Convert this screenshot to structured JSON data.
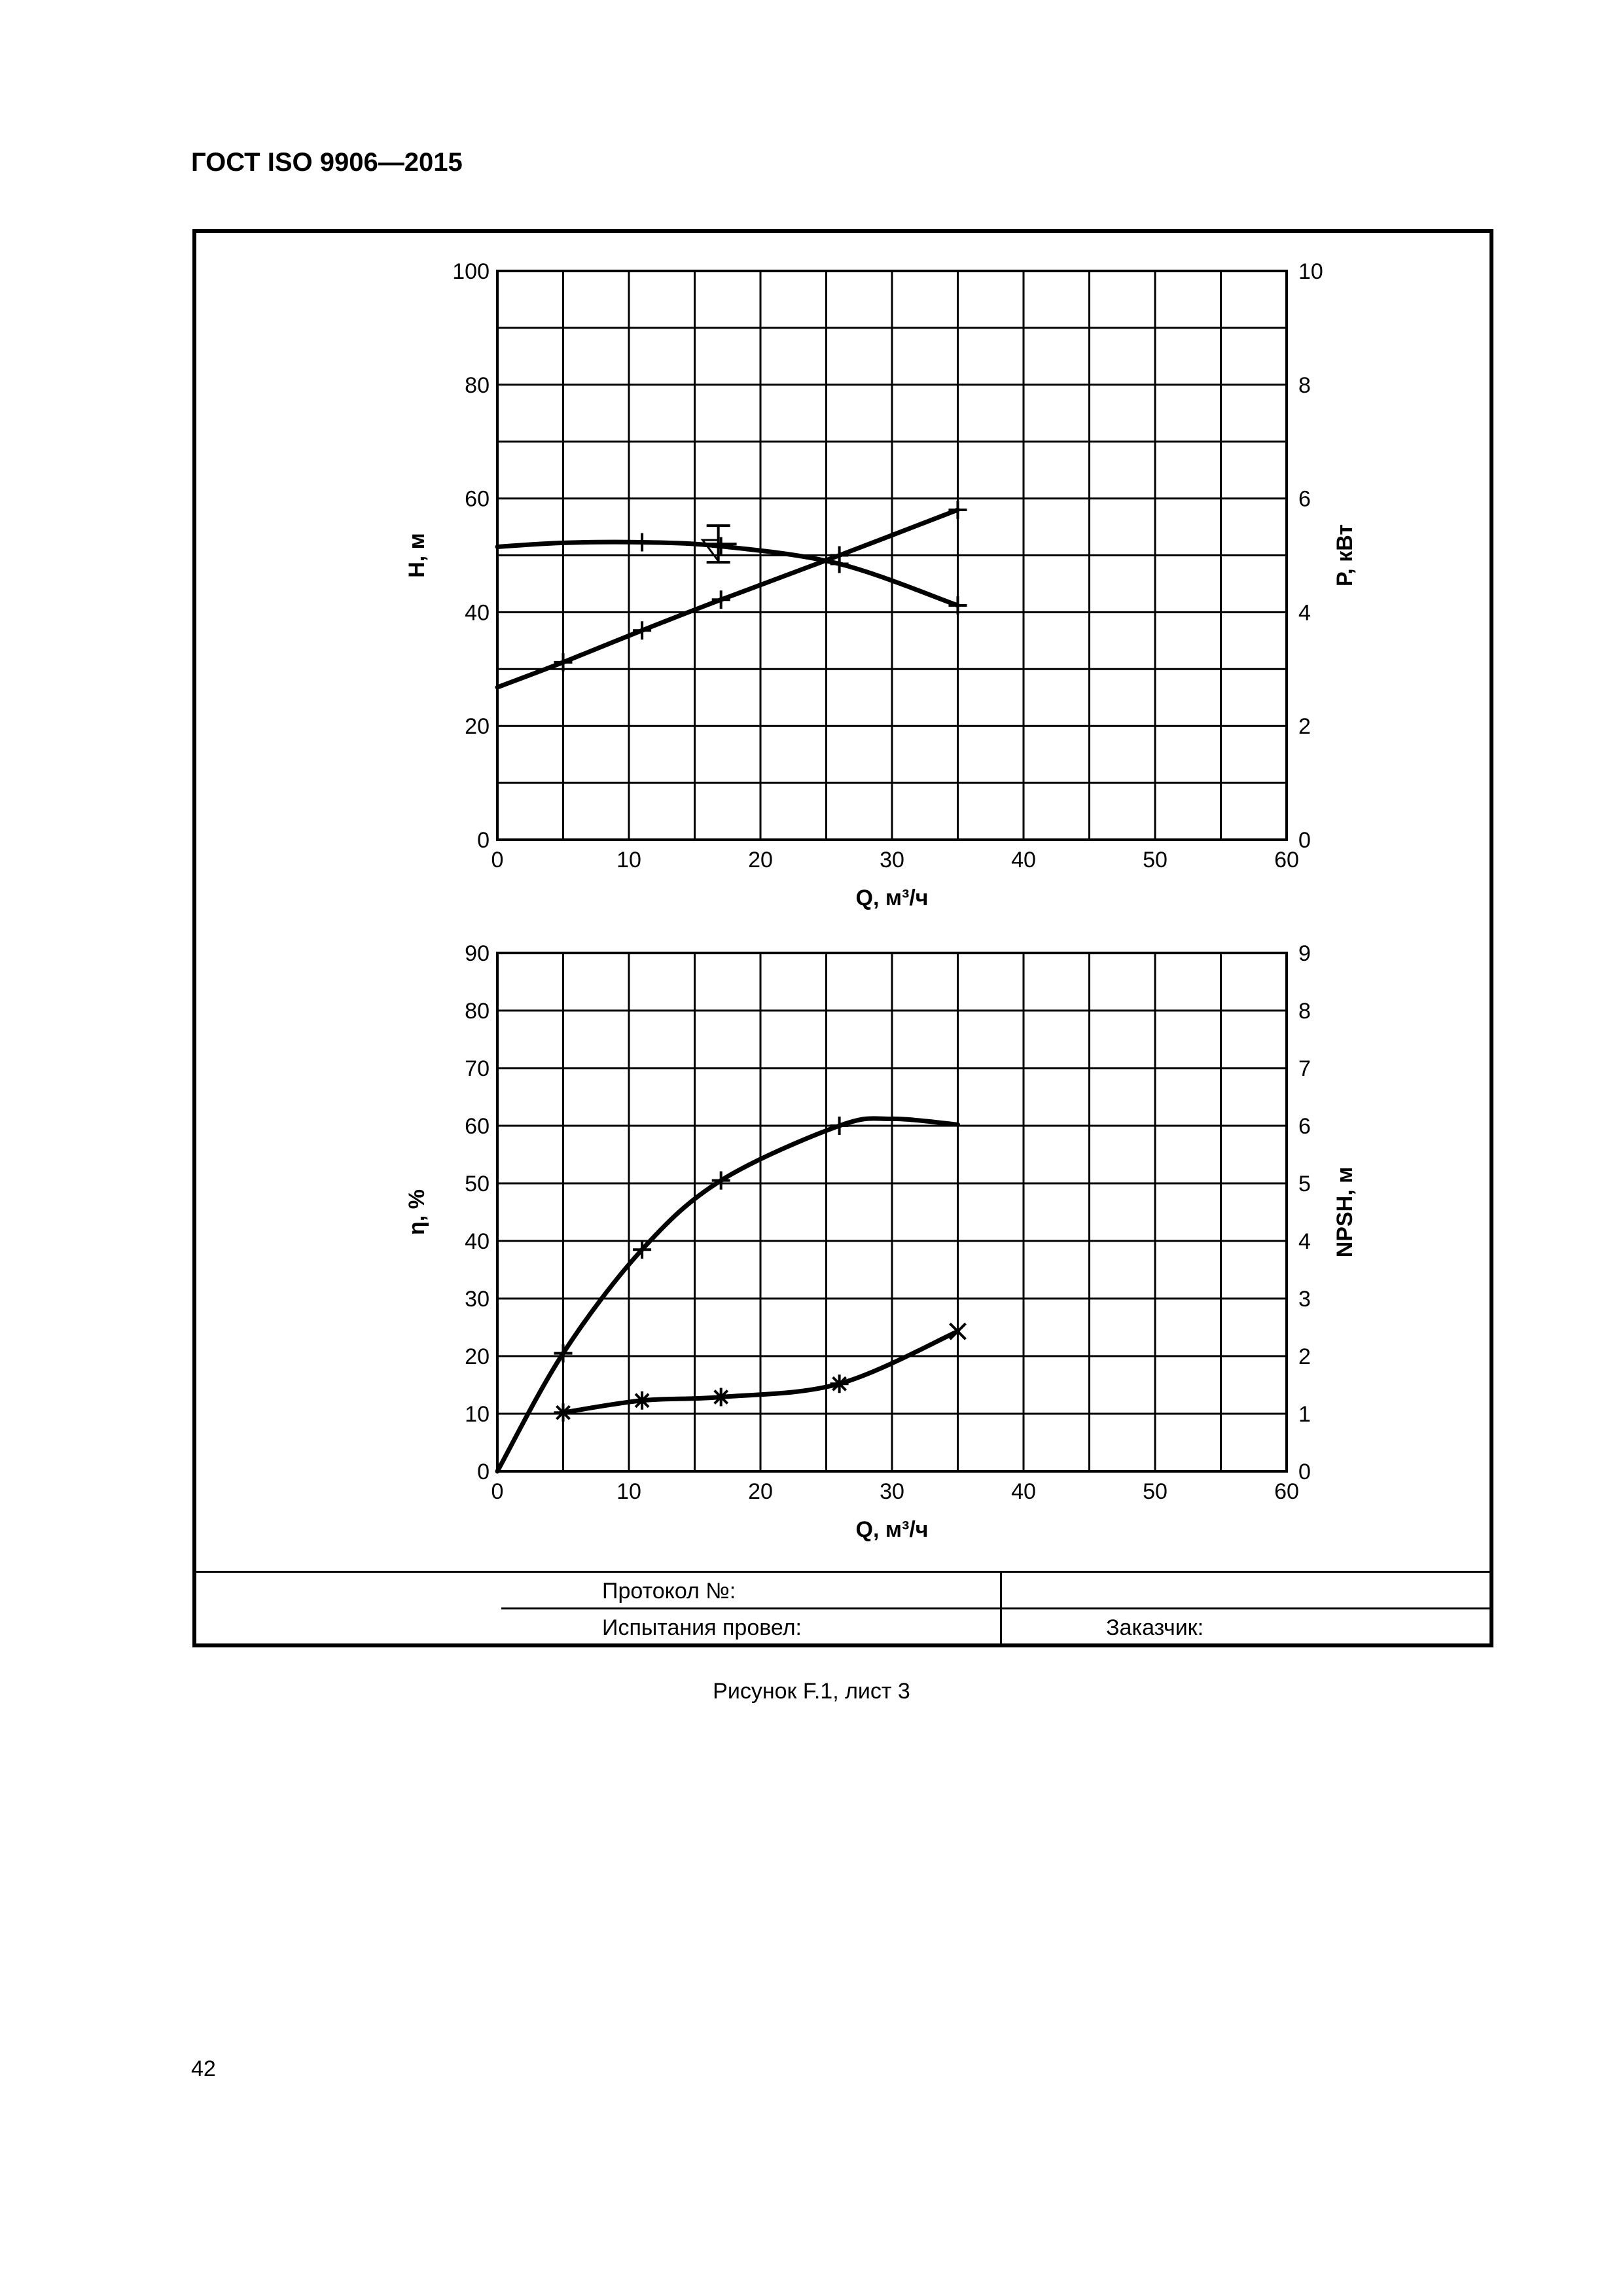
{
  "header": {
    "title": "ГОСТ ISO 9906—2015"
  },
  "footer": {
    "protocol_label": "Протокол №:",
    "tester_label": "Испытания провел:",
    "customer_label": "Заказчик:"
  },
  "caption": "Рисунок F.1, лист 3",
  "page_number": "42",
  "chart_data": [
    {
      "type": "line",
      "xlabel": "Q, м³/ч",
      "xlim": [
        0,
        60
      ],
      "xticks": [
        0,
        10,
        20,
        30,
        40,
        50,
        60
      ],
      "ylabel_left": "H, м",
      "ylim_left": [
        0,
        100
      ],
      "yticks_left": [
        0,
        20,
        40,
        60,
        80,
        100
      ],
      "ylabel_right": "P, кВт",
      "ylim_right": [
        0,
        10
      ],
      "yticks_right": [
        0,
        2,
        4,
        6,
        8,
        10
      ],
      "grid": true,
      "series": [
        {
          "axis": "left",
          "marker": "+",
          "points": [
            [
              0,
              51.5
            ],
            [
              5,
              52.2
            ],
            [
              11,
              52.3
            ],
            [
              17,
              51.6
            ],
            [
              26,
              48.5
            ],
            [
              35,
              41.2
            ]
          ],
          "marked": [
            [
              11,
              52.3
            ],
            [
              17,
              51.6
            ],
            [
              26,
              48.5
            ],
            [
              35,
              41.2
            ]
          ]
        },
        {
          "axis": "right",
          "marker": "+",
          "points": [
            [
              0,
              2.68
            ],
            [
              5,
              3.12
            ],
            [
              11,
              3.68
            ],
            [
              17,
              4.22
            ],
            [
              26,
              5.0
            ],
            [
              35,
              5.8
            ]
          ],
          "marked": [
            [
              5,
              3.12
            ],
            [
              11,
              3.68
            ],
            [
              17,
              4.22
            ],
            [
              26,
              5.0
            ],
            [
              35,
              5.8
            ]
          ]
        }
      ],
      "annotations": [
        {
          "kind": "guarantee-point",
          "x": 16.5,
          "y": 52
        }
      ]
    },
    {
      "type": "line",
      "xlabel": "Q, м³/ч",
      "xlim": [
        0,
        60
      ],
      "xticks": [
        0,
        10,
        20,
        30,
        40,
        50,
        60
      ],
      "ylabel_left": "η, %",
      "ylim_left": [
        0,
        90
      ],
      "yticks_left": [
        0,
        10,
        20,
        30,
        40,
        50,
        60,
        70,
        80,
        90
      ],
      "ylabel_right": "NPSH, м",
      "ylim_right": [
        0,
        9
      ],
      "yticks_right": [
        0,
        1,
        2,
        3,
        4,
        5,
        6,
        7,
        8,
        9
      ],
      "grid": true,
      "series": [
        {
          "axis": "left",
          "marker": "+",
          "points": [
            [
              0,
              0
            ],
            [
              5,
              20.5
            ],
            [
              11,
              38.5
            ],
            [
              17,
              50.5
            ],
            [
              26,
              60.0
            ],
            [
              30,
              61.2
            ],
            [
              35,
              60.2
            ]
          ],
          "marked": [
            [
              5,
              20.5
            ],
            [
              11,
              38.5
            ],
            [
              17,
              50.5
            ],
            [
              26,
              60.0
            ]
          ]
        },
        {
          "axis": "right",
          "marker": "*",
          "points": [
            [
              5,
              1.02
            ],
            [
              11,
              1.23
            ],
            [
              17,
              1.29
            ],
            [
              26,
              1.52
            ],
            [
              35,
              2.43
            ]
          ],
          "marked": [
            [
              5,
              1.02
            ],
            [
              11,
              1.23
            ],
            [
              17,
              1.29
            ],
            [
              26,
              1.52
            ]
          ],
          "last_marker": "x"
        }
      ]
    }
  ]
}
